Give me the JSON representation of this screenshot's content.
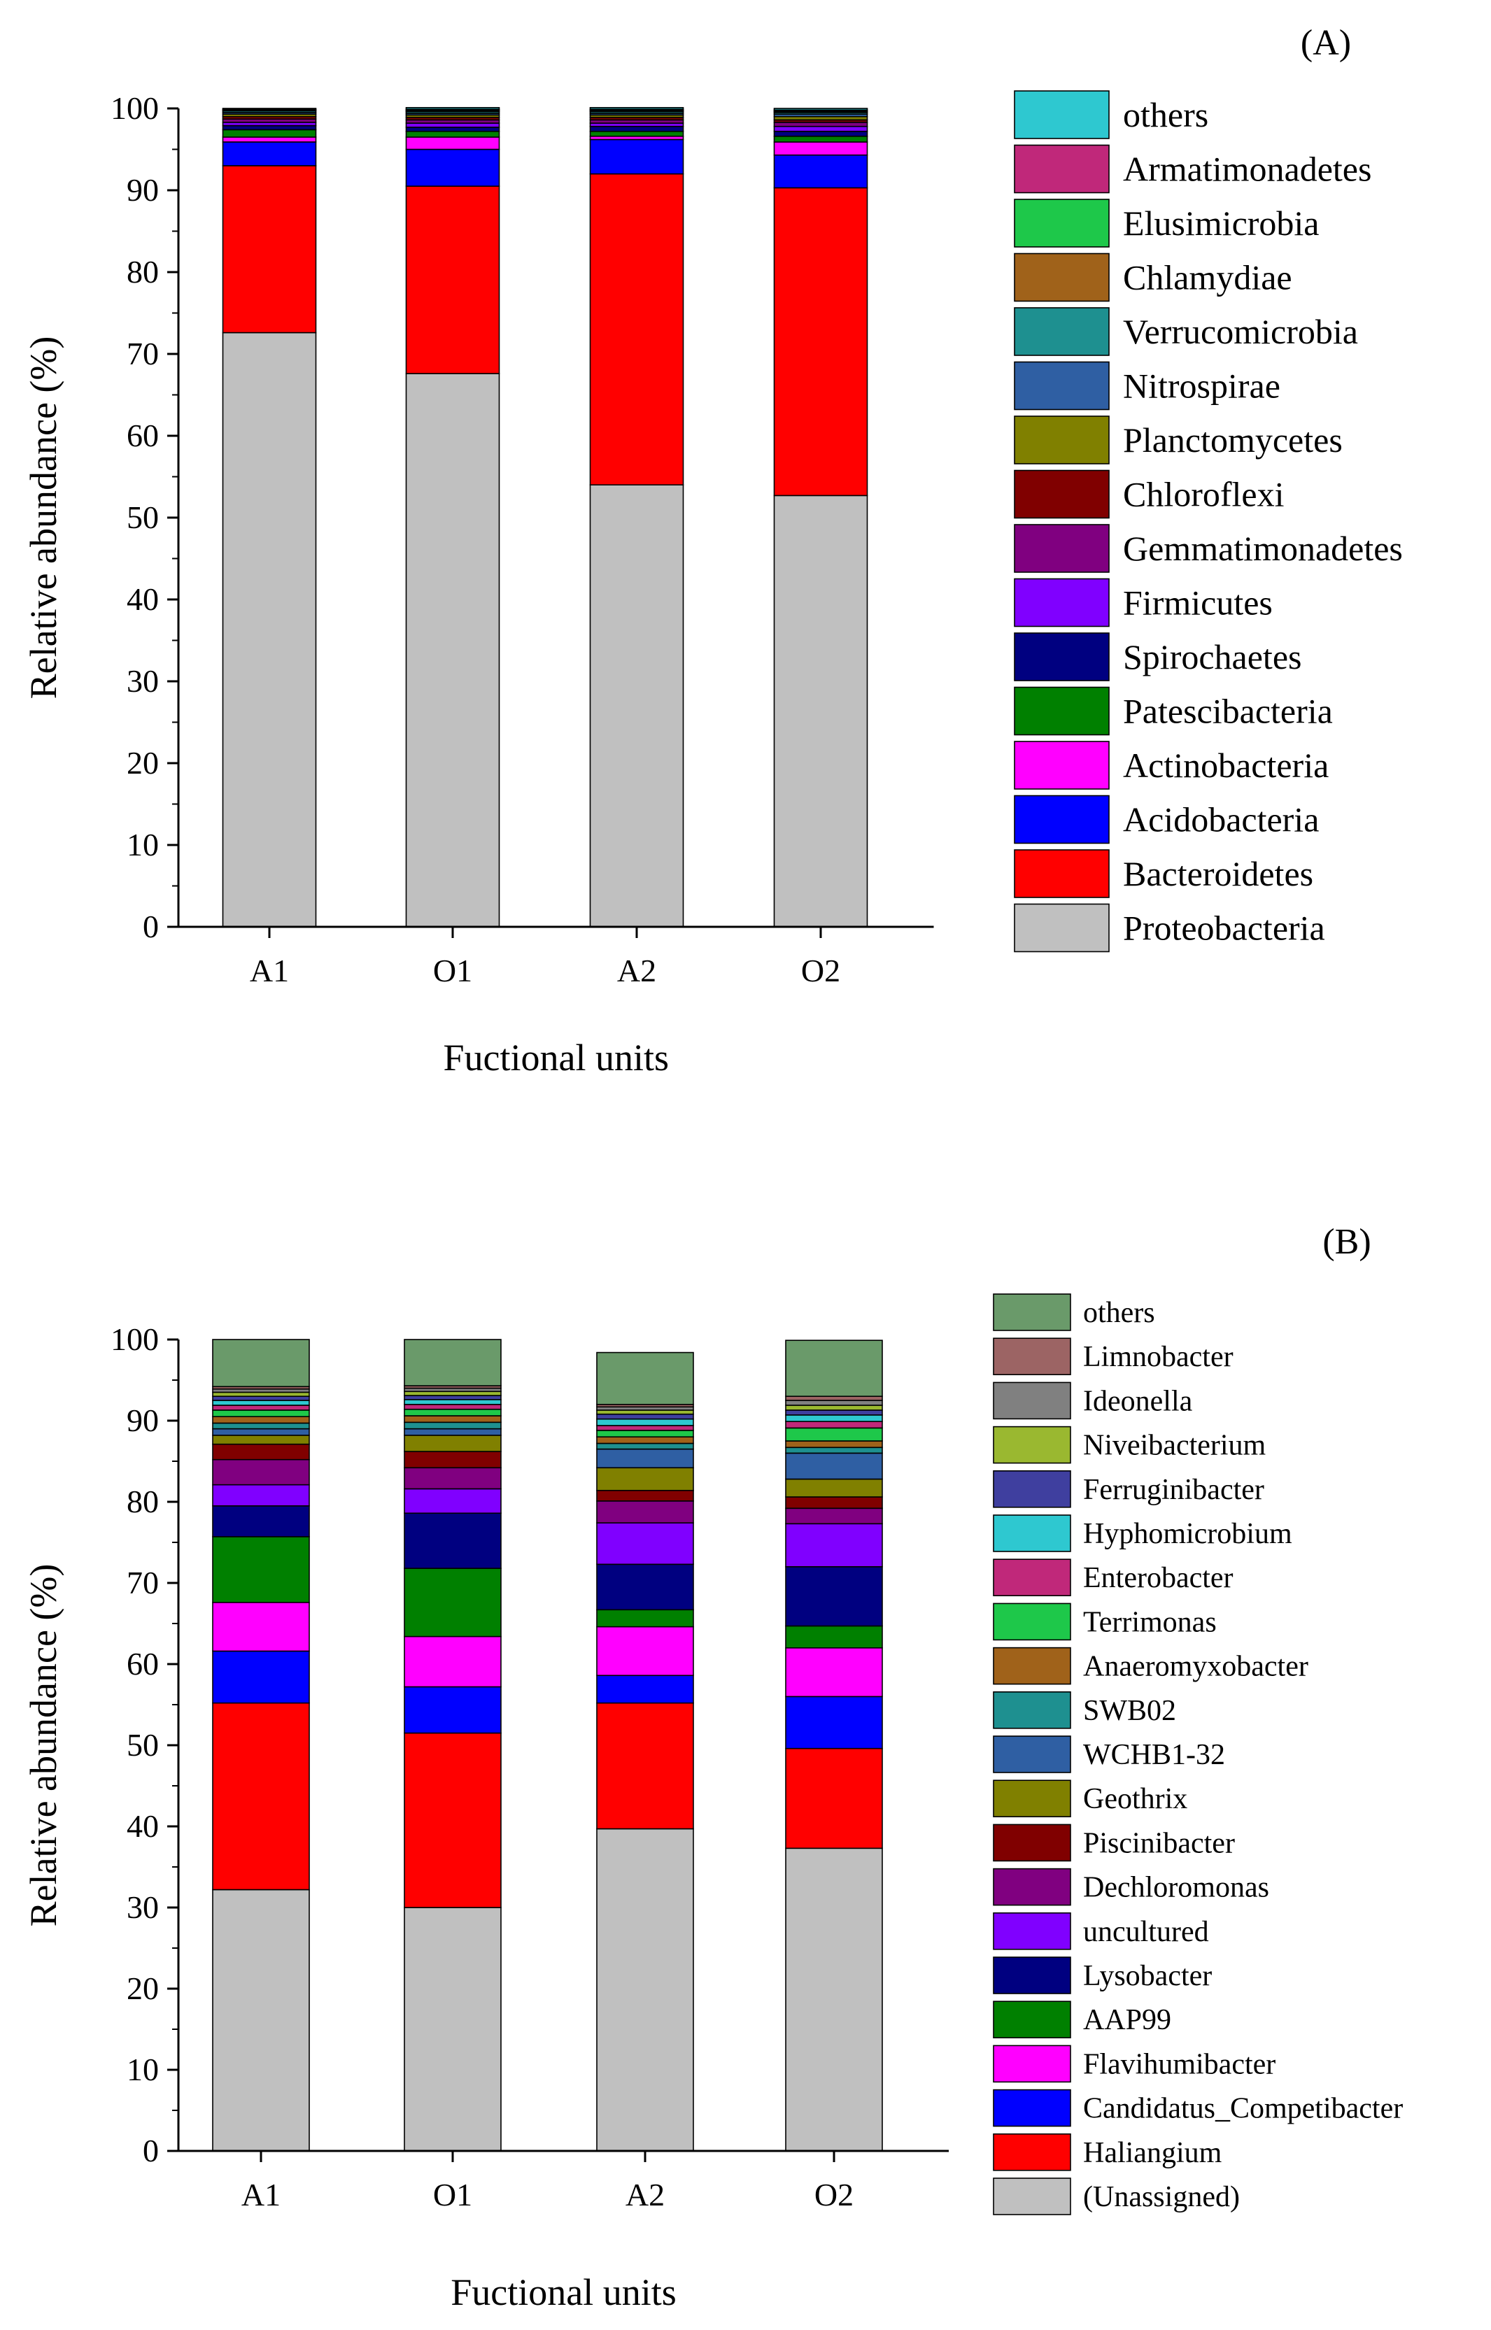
{
  "chart_data": [
    {
      "type": "bar",
      "stacked": true,
      "panel_label": "(A)",
      "categories": [
        "A1",
        "O1",
        "A2",
        "O2"
      ],
      "xlabel": "Fuctional units",
      "ylabel": "Relative abundance (%)",
      "ylim": [
        0,
        100
      ],
      "yticks": [
        0,
        10,
        20,
        30,
        40,
        50,
        60,
        70,
        80,
        90,
        100
      ],
      "grid": false,
      "legend_position": "right",
      "series": [
        {
          "name": "Proteobacteria",
          "color": "#c0c0c0",
          "values": [
            72.6,
            67.6,
            54.0,
            52.7
          ]
        },
        {
          "name": "Bacteroidetes",
          "color": "#ff0000",
          "values": [
            20.4,
            22.9,
            38.0,
            37.6
          ]
        },
        {
          "name": "Acidobacteria",
          "color": "#0000ff",
          "values": [
            2.9,
            4.5,
            4.2,
            4.0
          ]
        },
        {
          "name": "Actinobacteria",
          "color": "#ff00ff",
          "values": [
            0.6,
            1.5,
            0.4,
            1.6
          ]
        },
        {
          "name": "Patescibacteria",
          "color": "#008000",
          "values": [
            0.9,
            0.7,
            0.6,
            0.7
          ]
        },
        {
          "name": "Spirochaetes",
          "color": "#000080",
          "values": [
            0.5,
            0.5,
            0.6,
            0.6
          ]
        },
        {
          "name": "Firmicutes",
          "color": "#8000ff",
          "values": [
            0.4,
            0.5,
            0.4,
            0.6
          ]
        },
        {
          "name": "Gemmatimonadetes",
          "color": "#800080",
          "values": [
            0.4,
            0.4,
            0.4,
            0.5
          ]
        },
        {
          "name": "Chloroflexi",
          "color": "#800000",
          "values": [
            0.3,
            0.3,
            0.3,
            0.3
          ]
        },
        {
          "name": "Planctomycetes",
          "color": "#808000",
          "values": [
            0.3,
            0.3,
            0.3,
            0.4
          ]
        },
        {
          "name": "Nitrospirae",
          "color": "#2f5fa3",
          "values": [
            0.2,
            0.2,
            0.2,
            0.3
          ]
        },
        {
          "name": "Verrucomicrobia",
          "color": "#1e9090",
          "values": [
            0.2,
            0.2,
            0.2,
            0.2
          ]
        },
        {
          "name": "Chlamydiae",
          "color": "#a0621a",
          "values": [
            0.1,
            0.1,
            0.1,
            0.1
          ]
        },
        {
          "name": "Elusimicrobia",
          "color": "#1ec84a",
          "values": [
            0.1,
            0.1,
            0.1,
            0.1
          ]
        },
        {
          "name": "Armatimonadetes",
          "color": "#c0287a",
          "values": [
            0.1,
            0.1,
            0.1,
            0.1
          ]
        },
        {
          "name": "others",
          "color": "#2ec8d0",
          "values": [
            0.0,
            0.2,
            0.2,
            0.2
          ]
        }
      ]
    },
    {
      "type": "bar",
      "stacked": true,
      "panel_label": "(B)",
      "categories": [
        "A1",
        "O1",
        "A2",
        "O2"
      ],
      "xlabel": "Fuctional units",
      "ylabel": "Relative abundance (%)",
      "ylim": [
        0,
        100
      ],
      "yticks": [
        0,
        10,
        20,
        30,
        40,
        50,
        60,
        70,
        80,
        90,
        100
      ],
      "grid": false,
      "legend_position": "right",
      "series": [
        {
          "name": "(Unassigned)",
          "color": "#c0c0c0",
          "values": [
            32.2,
            30.0,
            39.7,
            37.3
          ]
        },
        {
          "name": "Haliangium",
          "color": "#ff0000",
          "values": [
            23.0,
            21.5,
            15.5,
            12.3
          ]
        },
        {
          "name": "Candidatus_Competibacter",
          "color": "#0000ff",
          "values": [
            6.4,
            5.7,
            3.4,
            6.4
          ]
        },
        {
          "name": "Flavihumibacter",
          "color": "#ff00ff",
          "values": [
            6.0,
            6.2,
            6.0,
            6.0
          ]
        },
        {
          "name": "AAP99",
          "color": "#008000",
          "values": [
            8.1,
            8.4,
            2.1,
            2.7
          ]
        },
        {
          "name": "Lysobacter",
          "color": "#000080",
          "values": [
            3.8,
            6.8,
            5.6,
            7.3
          ]
        },
        {
          "name": "uncultured",
          "color": "#8000ff",
          "values": [
            2.6,
            3.0,
            5.1,
            5.3
          ]
        },
        {
          "name": "Dechloromonas",
          "color": "#800080",
          "values": [
            3.1,
            2.6,
            2.7,
            1.9
          ]
        },
        {
          "name": "Piscinibacter",
          "color": "#800000",
          "values": [
            1.9,
            2.0,
            1.3,
            1.4
          ]
        },
        {
          "name": "Geothrix",
          "color": "#808000",
          "values": [
            1.1,
            2.0,
            2.8,
            2.2
          ]
        },
        {
          "name": "WCHB1-32",
          "color": "#2f5fa3",
          "values": [
            0.8,
            0.8,
            2.3,
            3.2
          ]
        },
        {
          "name": "SWB02",
          "color": "#1e9090",
          "values": [
            0.7,
            0.8,
            0.7,
            0.7
          ]
        },
        {
          "name": "Anaeromyxobacter",
          "color": "#a0621a",
          "values": [
            0.8,
            0.8,
            0.8,
            0.8
          ]
        },
        {
          "name": "Terrimonas",
          "color": "#1ec84a",
          "values": [
            0.8,
            0.8,
            0.8,
            1.6
          ]
        },
        {
          "name": "Enterobacter",
          "color": "#c0287a",
          "values": [
            0.6,
            0.6,
            0.6,
            0.8
          ]
        },
        {
          "name": "Hyphomicrobium",
          "color": "#2ec8d0",
          "values": [
            0.6,
            0.6,
            0.8,
            0.8
          ]
        },
        {
          "name": "Ferruginibacter",
          "color": "#3f3f9f",
          "values": [
            0.5,
            0.5,
            0.6,
            0.6
          ]
        },
        {
          "name": "Niveibacterium",
          "color": "#9ab830",
          "values": [
            0.5,
            0.5,
            0.5,
            0.6
          ]
        },
        {
          "name": "Ideonella",
          "color": "#808080",
          "values": [
            0.4,
            0.4,
            0.4,
            0.6
          ]
        },
        {
          "name": "Limnobacter",
          "color": "#9c6464",
          "values": [
            0.3,
            0.3,
            0.3,
            0.5
          ]
        },
        {
          "name": "others",
          "color": "#6a9a6a",
          "values": [
            5.8,
            5.7,
            6.4,
            6.9
          ]
        }
      ]
    }
  ]
}
